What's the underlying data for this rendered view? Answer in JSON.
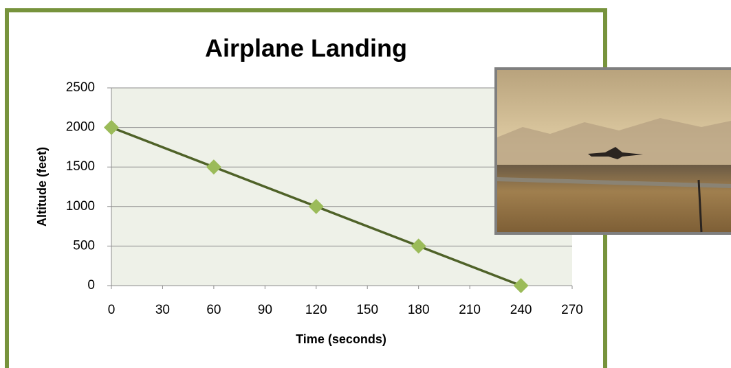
{
  "chart_data": {
    "type": "line",
    "title": "Airplane Landing",
    "x_label": "Time (seconds)",
    "y_label": "Altitude (feet)",
    "x": [
      0,
      60,
      120,
      180,
      240
    ],
    "series": [
      {
        "color": "#4f6228",
        "marker_color": "#9bbb59",
        "values": [
          2000,
          1500,
          1000,
          500,
          0
        ]
      }
    ],
    "xlim": [
      0,
      270
    ],
    "xticks": [
      0,
      30,
      60,
      90,
      120,
      150,
      180,
      210,
      240,
      270
    ],
    "ylim": [
      0,
      2500
    ],
    "yticks": [
      0,
      500,
      1000,
      1500,
      2000,
      2500
    ],
    "grid": true
  }
}
